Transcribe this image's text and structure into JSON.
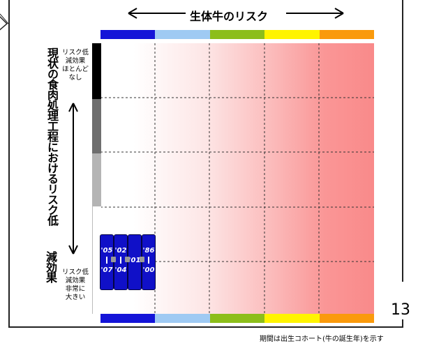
{
  "header": {
    "title": "生体牛のリスク"
  },
  "risk_bar_colors": [
    "#1414d8",
    "#9fcaf3",
    "#8cbe1a",
    "#fff400",
    "#fa9a0c"
  ],
  "left_axis": {
    "title_main": "現状の食肉処理工程におけるリスク低",
    "title_tail": "減効果",
    "top_note": [
      "リスク低",
      "減効果",
      "ほとんど",
      "なし"
    ],
    "bottom_note": [
      "リスク低",
      "減効果",
      "非常に",
      "大きい"
    ],
    "scale_colors": [
      "#000000",
      "#6e6e6e",
      "#b4b4b4",
      "#ffffff"
    ]
  },
  "cohorts": [
    {
      "top": "'05",
      "bottom": "'07"
    },
    {
      "top": "'02",
      "bottom": "'04"
    },
    {
      "top": "'01",
      "bottom": ""
    },
    {
      "top": "'86",
      "bottom": "'00"
    }
  ],
  "page_number": "13",
  "footnote": "期間は出生コホート(牛の誕生年)を示す"
}
